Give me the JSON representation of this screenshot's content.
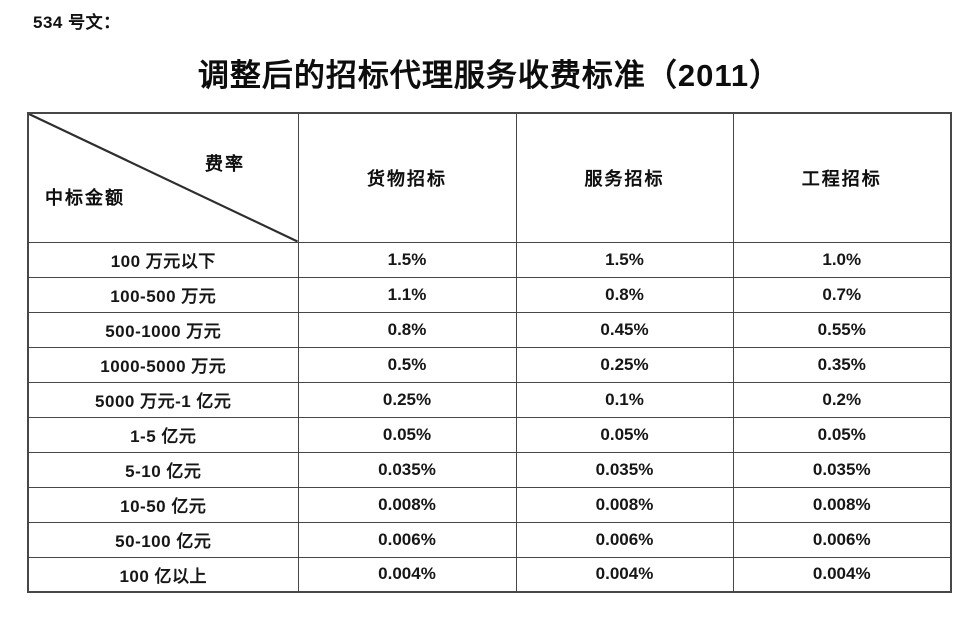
{
  "doc_label": "534 号文：",
  "title": "调整后的招标代理服务收费标准（2011）",
  "table": {
    "corner": {
      "top_right": "费率",
      "bottom_left": "中标金额"
    },
    "columns": [
      "货物招标",
      "服务招标",
      "工程招标"
    ],
    "rows": [
      {
        "label": "100 万元以下",
        "values": [
          "1.5%",
          "1.5%",
          "1.0%"
        ]
      },
      {
        "label": "100-500 万元",
        "values": [
          "1.1%",
          "0.8%",
          "0.7%"
        ]
      },
      {
        "label": "500-1000 万元",
        "values": [
          "0.8%",
          "0.45%",
          "0.55%"
        ]
      },
      {
        "label": "1000-5000 万元",
        "values": [
          "0.5%",
          "0.25%",
          "0.35%"
        ]
      },
      {
        "label": "5000 万元-1 亿元",
        "values": [
          "0.25%",
          "0.1%",
          "0.2%"
        ]
      },
      {
        "label": "1-5 亿元",
        "values": [
          "0.05%",
          "0.05%",
          "0.05%"
        ]
      },
      {
        "label": "5-10 亿元",
        "values": [
          "0.035%",
          "0.035%",
          "0.035%"
        ]
      },
      {
        "label": "10-50 亿元",
        "values": [
          "0.008%",
          "0.008%",
          "0.008%"
        ]
      },
      {
        "label": "50-100 亿元",
        "values": [
          "0.006%",
          "0.006%",
          "0.006%"
        ]
      },
      {
        "label": "100 亿以上",
        "values": [
          "0.004%",
          "0.004%",
          "0.004%"
        ]
      }
    ]
  },
  "colors": {
    "text": "#1a1a1a",
    "border": "#474747",
    "background": "#ffffff"
  },
  "chart_data": {
    "type": "table",
    "title": "调整后的招标代理服务收费标准（2011）",
    "row_header": "中标金额",
    "column_header": "费率",
    "categories": [
      "100 万元以下",
      "100-500 万元",
      "500-1000 万元",
      "1000-5000 万元",
      "5000 万元-1 亿元",
      "1-5 亿元",
      "5-10 亿元",
      "10-50 亿元",
      "50-100 亿元",
      "100 亿以上"
    ],
    "series": [
      {
        "name": "货物招标",
        "values": [
          "1.5%",
          "1.1%",
          "0.8%",
          "0.5%",
          "0.25%",
          "0.05%",
          "0.035%",
          "0.008%",
          "0.006%",
          "0.004%"
        ]
      },
      {
        "name": "服务招标",
        "values": [
          "1.5%",
          "0.8%",
          "0.45%",
          "0.25%",
          "0.1%",
          "0.05%",
          "0.035%",
          "0.008%",
          "0.006%",
          "0.004%"
        ]
      },
      {
        "name": "工程招标",
        "values": [
          "1.0%",
          "0.7%",
          "0.55%",
          "0.35%",
          "0.2%",
          "0.05%",
          "0.035%",
          "0.008%",
          "0.006%",
          "0.004%"
        ]
      }
    ]
  }
}
